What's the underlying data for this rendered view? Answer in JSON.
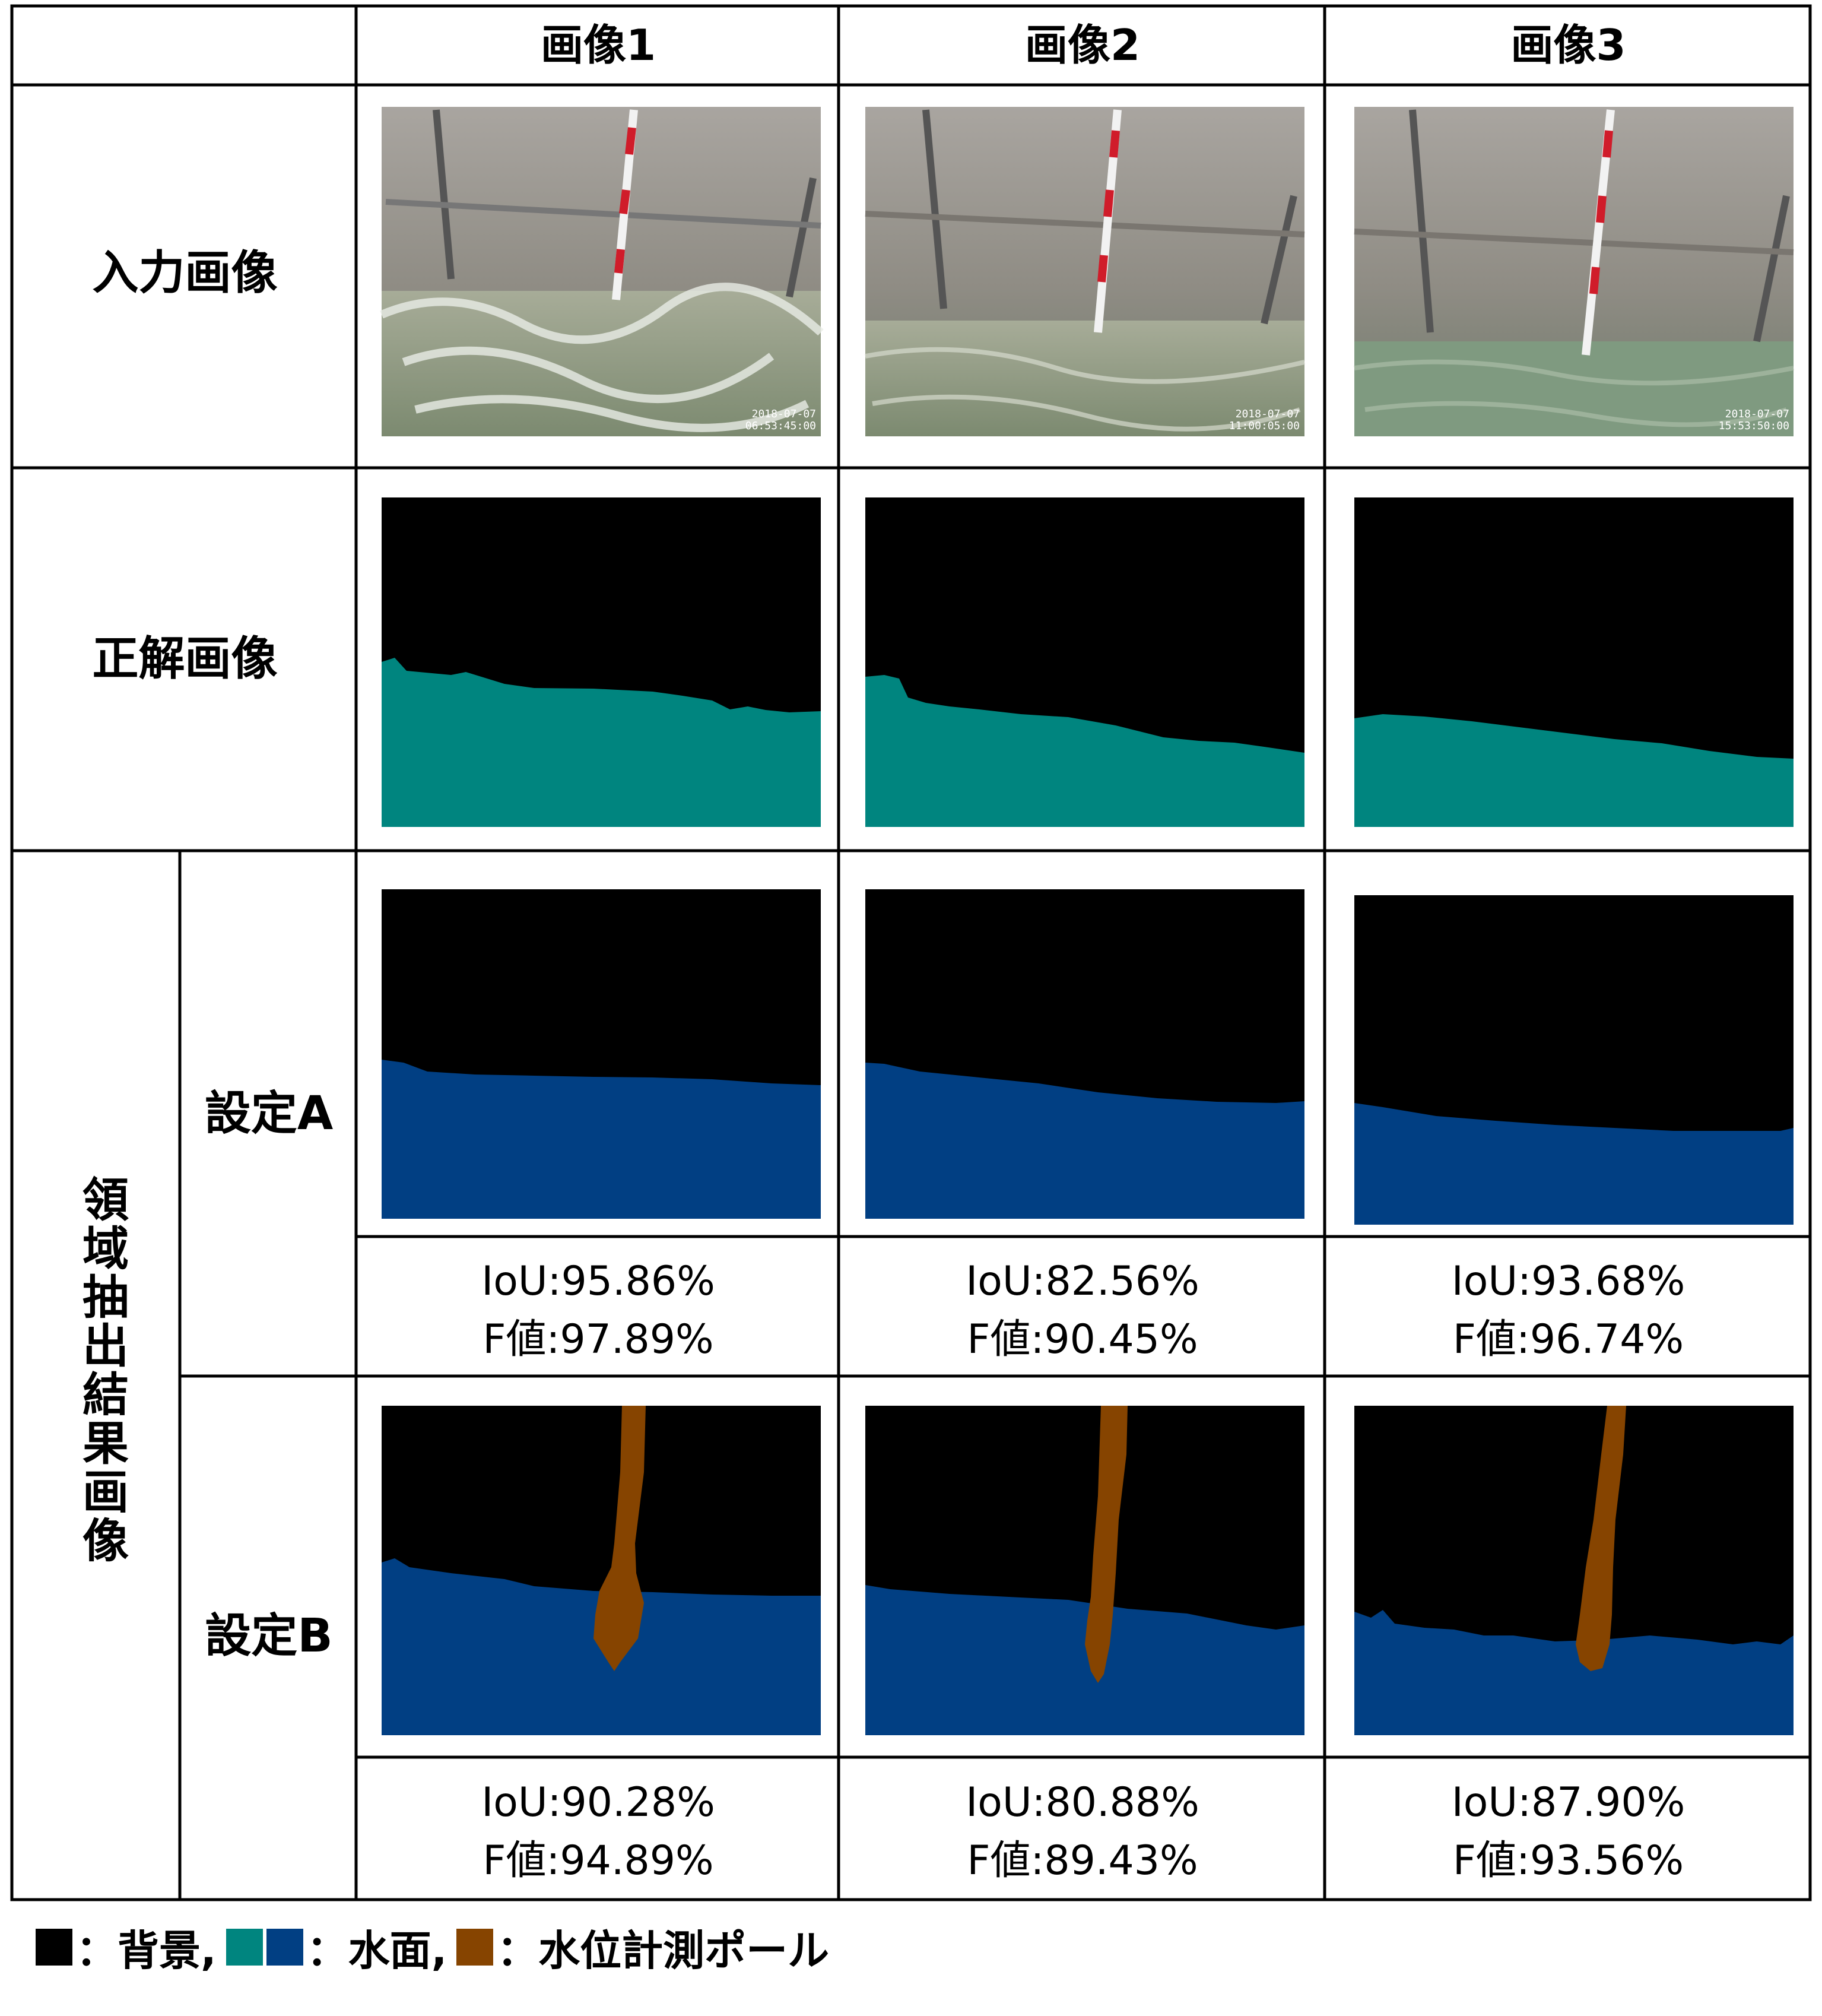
{
  "columns": [
    "画像1",
    "画像2",
    "画像3"
  ],
  "row_labels": {
    "input": "入力画像",
    "ground_truth": "正解画像",
    "result_group": "領域抽出結果画像",
    "setting_a": "設定A",
    "setting_b": "設定B"
  },
  "photo_timestamps": [
    [
      "2018-07-07",
      "06:53:45:00"
    ],
    [
      "2018-07-07",
      "11:00:05:00"
    ],
    [
      "2018-07-07",
      "15:53:50:00"
    ]
  ],
  "metrics": {
    "setting_a": [
      {
        "iou": "IoU:95.86%",
        "f": "F値:97.89%"
      },
      {
        "iou": "IoU:82.56%",
        "f": "F値:90.45%"
      },
      {
        "iou": "IoU:93.68%",
        "f": "F値:96.74%"
      }
    ],
    "setting_b": [
      {
        "iou": "IoU:90.28%",
        "f": "F値:94.89%"
      },
      {
        "iou": "IoU:80.88%",
        "f": "F値:89.43%"
      },
      {
        "iou": "IoU:87.90%",
        "f": "F値:93.56%"
      }
    ]
  },
  "legend": {
    "background": "：背景,",
    "water": "：水面,",
    "pole": "：水位計測ポール"
  },
  "colors": {
    "background": "#000000",
    "water_gt": "#00857f",
    "water_pred": "#013f83",
    "pole": "#864400",
    "border": "#000000"
  },
  "icons": [
    "segmentation-mask",
    "water-surface-photo"
  ]
}
